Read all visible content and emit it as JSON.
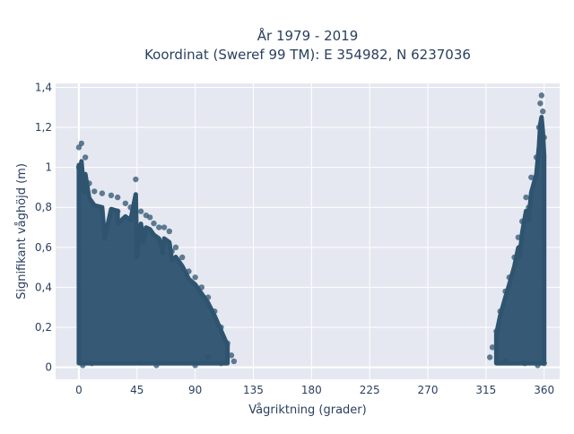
{
  "chart_data": {
    "type": "scatter",
    "title_line1": "År 1979 - 2019",
    "title_line2": "Koordinat (Sweref 99 TM): E 354982, N 6237036",
    "xlabel": "Vågriktning (grader)",
    "ylabel": "Signifikant våghöjd (m)",
    "xlim": [
      -18,
      372
    ],
    "ylim": [
      -0.06,
      1.42
    ],
    "x_ticks": [
      0,
      45,
      90,
      135,
      180,
      225,
      270,
      315,
      360
    ],
    "x_tick_labels": [
      "0",
      "45",
      "90",
      "135",
      "180",
      "225",
      "270",
      "315",
      "360"
    ],
    "y_ticks": [
      0,
      0.2,
      0.4,
      0.6,
      0.8,
      1.0,
      1.2,
      1.4
    ],
    "y_tick_labels": [
      "0",
      "0,2",
      "0,4",
      "0,6",
      "0,8",
      "1",
      "1,2",
      "1,4"
    ],
    "grid": true,
    "marker_color": "#2f5470",
    "plot_bg": "#e5e8f0",
    "series": [
      {
        "points": [
          [
            0,
            1.1
          ],
          [
            2,
            1.12
          ],
          [
            5,
            1.05
          ],
          [
            0,
            1.0
          ],
          [
            4,
            0.95
          ],
          [
            8,
            0.92
          ],
          [
            12,
            0.88
          ],
          [
            18,
            0.87
          ],
          [
            25,
            0.86
          ],
          [
            30,
            0.85
          ],
          [
            36,
            0.82
          ],
          [
            40,
            0.8
          ],
          [
            44,
            0.94
          ],
          [
            48,
            0.78
          ],
          [
            52,
            0.76
          ],
          [
            55,
            0.75
          ],
          [
            58,
            0.72
          ],
          [
            62,
            0.7
          ],
          [
            66,
            0.7
          ],
          [
            70,
            0.68
          ],
          [
            75,
            0.6
          ],
          [
            80,
            0.55
          ],
          [
            85,
            0.48
          ],
          [
            90,
            0.45
          ],
          [
            95,
            0.4
          ],
          [
            100,
            0.35
          ],
          [
            105,
            0.28
          ],
          [
            110,
            0.2
          ],
          [
            115,
            0.12
          ],
          [
            118,
            0.06
          ],
          [
            120,
            0.03
          ],
          [
            45,
            0.6
          ],
          [
            20,
            0.7
          ],
          [
            65,
            0.62
          ],
          [
            72,
            0.58
          ],
          [
            30,
            0.78
          ],
          [
            50,
            0.68
          ],
          [
            10,
            0.02
          ],
          [
            60,
            0.01
          ],
          [
            90,
            0.01
          ],
          [
            110,
            0.02
          ],
          [
            3,
            0.01
          ],
          [
            100,
            0.05
          ]
        ]
      },
      {
        "points": [
          [
            358,
            1.36
          ],
          [
            357,
            1.32
          ],
          [
            359,
            1.28
          ],
          [
            356,
            1.2
          ],
          [
            360,
            1.15
          ],
          [
            354,
            1.05
          ],
          [
            350,
            0.95
          ],
          [
            346,
            0.85
          ],
          [
            343,
            0.73
          ],
          [
            340,
            0.65
          ],
          [
            337,
            0.55
          ],
          [
            333,
            0.45
          ],
          [
            330,
            0.38
          ],
          [
            326,
            0.28
          ],
          [
            323,
            0.18
          ],
          [
            320,
            0.1
          ],
          [
            318,
            0.05
          ],
          [
            360,
            0.02
          ],
          [
            345,
            0.02
          ],
          [
            330,
            0.03
          ],
          [
            355,
            0.01
          ],
          [
            341,
            0.6
          ],
          [
            348,
            0.8
          ]
        ]
      }
    ]
  }
}
